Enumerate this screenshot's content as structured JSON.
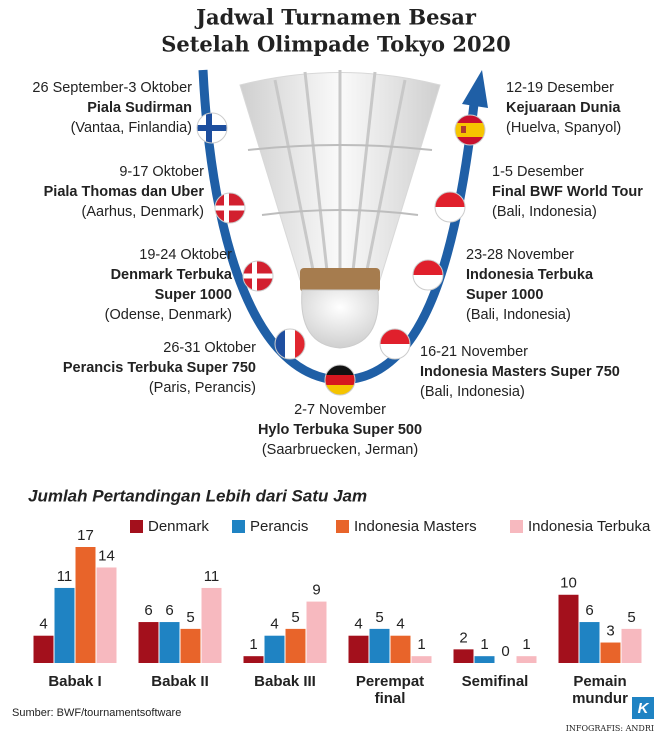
{
  "header": {
    "title": "Jadwal Turnamen Besar",
    "subtitle": "Setelah Olimpade Tokyo 2020"
  },
  "events": [
    {
      "date": "26 September-3 Oktober",
      "name": [
        "Piala Sudirman"
      ],
      "place": "(Vantaa, Finlandia)"
    },
    {
      "date": "9-17 Oktober",
      "name": [
        "Piala Thomas dan Uber"
      ],
      "place": "(Aarhus, Denmark)"
    },
    {
      "date": "19-24 Oktober",
      "name": [
        "Denmark Terbuka",
        "Super 1000"
      ],
      "place": "(Odense, Denmark)"
    },
    {
      "date": "26-31 Oktober",
      "name": [
        "Perancis Terbuka Super 750"
      ],
      "place": "(Paris, Perancis)"
    },
    {
      "date": "2-7 November",
      "name": [
        "Hylo Terbuka Super 500"
      ],
      "place": "(Saarbruecken, Jerman)"
    },
    {
      "date": "16-21 November",
      "name": [
        "Indonesia Masters Super 750"
      ],
      "place": "(Bali, Indonesia)"
    },
    {
      "date": "23-28 November",
      "name": [
        "Indonesia Terbuka",
        "Super 1000"
      ],
      "place": "(Bali, Indonesia)"
    },
    {
      "date": "1-5 Desember",
      "name": [
        "Final BWF World Tour"
      ],
      "place": "(Bali, Indonesia)"
    },
    {
      "date": "12-19 Desember",
      "name": [
        "Kejuaraan Dunia"
      ],
      "place": "(Huelva, Spanyol)"
    }
  ],
  "chart_data": {
    "type": "bar",
    "title": "Jumlah Pertandingan Lebih dari Satu Jam",
    "categories": [
      "Babak I",
      "Babak II",
      "Babak III",
      "Perempat final",
      "Semifinal",
      "Pemain mundur"
    ],
    "series": [
      {
        "name": "Denmark",
        "color": "#a3101c",
        "values": [
          4,
          6,
          1,
          4,
          2,
          10
        ]
      },
      {
        "name": "Perancis",
        "color": "#1f83c3",
        "values": [
          11,
          6,
          4,
          5,
          1,
          6
        ]
      },
      {
        "name": "Indonesia Masters",
        "color": "#e8642a",
        "values": [
          17,
          5,
          5,
          4,
          0,
          3
        ]
      },
      {
        "name": "Indonesia Terbuka",
        "color": "#f7b9bf",
        "values": [
          14,
          11,
          9,
          1,
          1,
          5
        ]
      }
    ]
  },
  "footer": {
    "source": "Sumber: BWF/tournamentsoftware",
    "logo": "K",
    "credit": "INFOGRAFIS: ANDRI"
  }
}
